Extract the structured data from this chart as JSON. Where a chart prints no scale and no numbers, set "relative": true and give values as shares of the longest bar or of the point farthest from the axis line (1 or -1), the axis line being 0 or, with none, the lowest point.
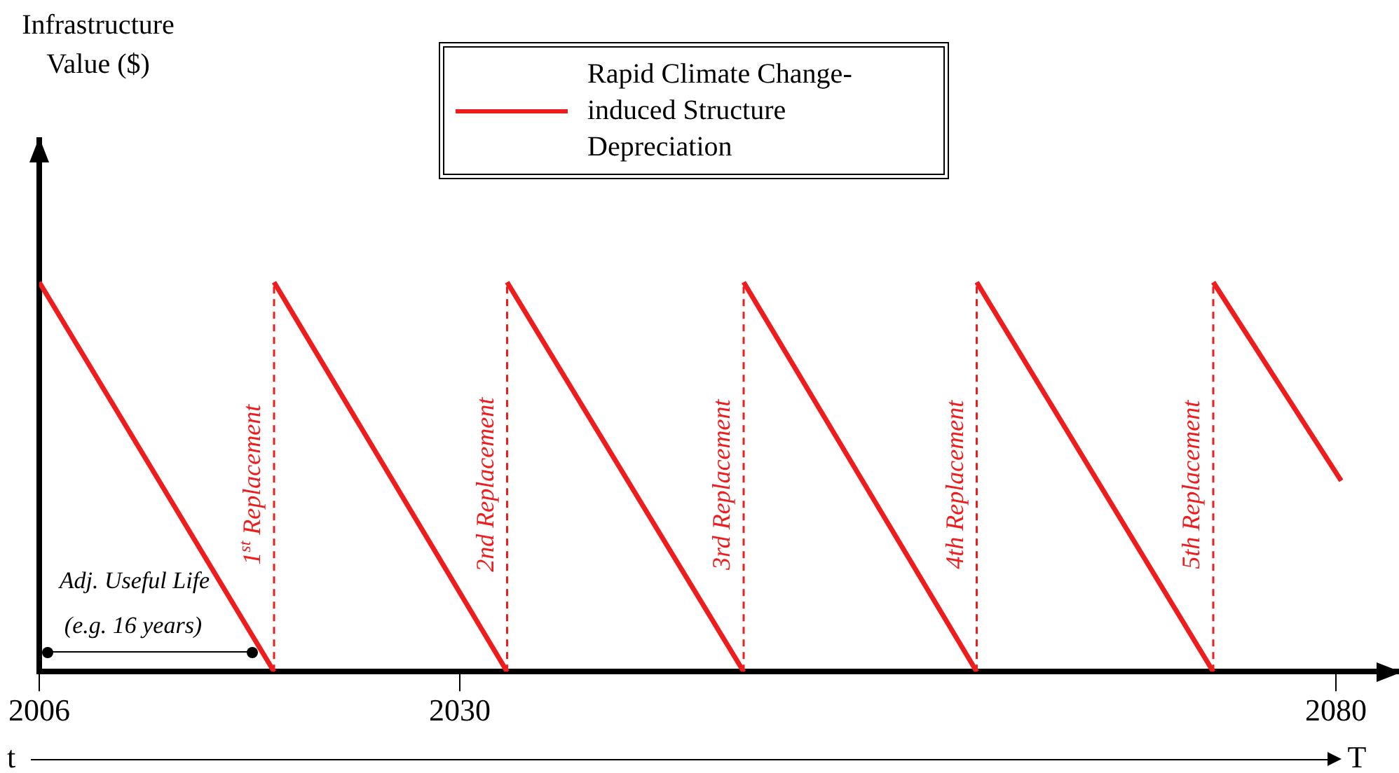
{
  "chart_data": {
    "type": "line",
    "relative": true,
    "xlim": [
      2006,
      2083.6
    ],
    "xticks": [
      2006,
      2030,
      2080
    ],
    "series": [
      {
        "name": "Rapid Climate Change-induced Structure Depreciation",
        "color": "#ee1c1c",
        "x": [
          2006,
          2019.4
        ],
        "values": [
          1,
          0
        ]
      },
      {
        "color": "#ee1c1c",
        "x": [
          2019.4,
          2032.7
        ],
        "values": [
          1,
          0
        ]
      },
      {
        "color": "#ee1c1c",
        "x": [
          2032.7,
          2046.2
        ],
        "values": [
          1,
          0
        ]
      },
      {
        "color": "#ee1c1c",
        "x": [
          2046.2,
          2059.5
        ],
        "values": [
          1,
          0
        ]
      },
      {
        "color": "#ee1c1c",
        "x": [
          2059.5,
          2073
        ],
        "values": [
          1,
          0
        ]
      },
      {
        "color": "#ee1c1c",
        "x": [
          2073,
          2080.3
        ],
        "values": [
          1,
          0.49
        ]
      }
    ],
    "ref_lines": [
      {
        "axis": "x",
        "value": 2019.4,
        "label": "1$^{st}$ Replacement",
        "color": "#ee1c1c",
        "line_style": "dashed"
      },
      {
        "axis": "x",
        "value": 2032.7,
        "label": "2nd Replacement",
        "color": "#ee1c1c",
        "line_style": "dashed"
      },
      {
        "axis": "x",
        "value": 2046.2,
        "label": "3rd Replacement",
        "color": "#ee1c1c",
        "line_style": "dashed"
      },
      {
        "axis": "x",
        "value": 2059.5,
        "label": "4th Replacement",
        "color": "#ee1c1c",
        "line_style": "dashed"
      },
      {
        "axis": "x",
        "value": 2073,
        "label": "5th Replacement",
        "color": "#ee1c1c",
        "line_style": "dashed"
      }
    ],
    "annotations": [
      "Infrastructure Value ($)",
      "Adj. Useful Life",
      "(e.g. 16 years)",
      "t",
      "T"
    ],
    "legend": "top",
    "grid": false,
    "marker": "none",
    "line_style": "solid"
  }
}
